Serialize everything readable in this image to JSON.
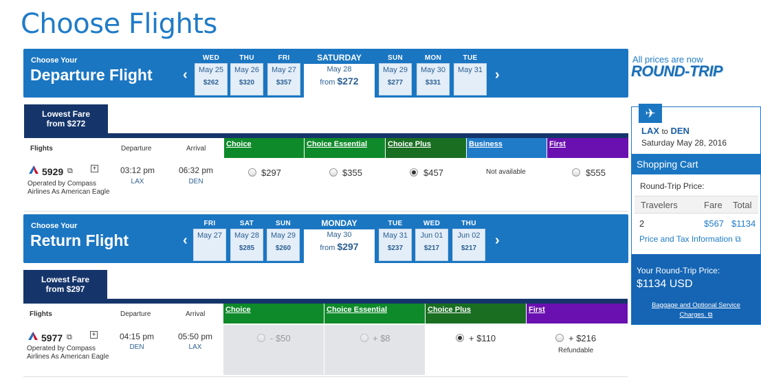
{
  "page_title": "Choose Flights",
  "departure": {
    "choose_your": "Choose Your",
    "flight_type": "Departure Flight",
    "prev_arrow": "‹",
    "next_arrow": "›",
    "days": [
      {
        "dow": "WED",
        "date": "May 25",
        "price": "$262"
      },
      {
        "dow": "THU",
        "date": "May 26",
        "price": "$320"
      },
      {
        "dow": "FRI",
        "date": "May 27",
        "price": "$357"
      },
      {
        "dow": "SUN",
        "date": "May 29",
        "price": "$277"
      },
      {
        "dow": "MON",
        "date": "May 30",
        "price": "$331"
      },
      {
        "dow": "TUE",
        "date": "May 31",
        "price": ""
      }
    ],
    "selected": {
      "dow": "SATURDAY",
      "date": "May 28",
      "from": "from",
      "price": "$272"
    },
    "lowest_fare": {
      "line1": "Lowest Fare",
      "line2": "from $272"
    },
    "headers": {
      "flights": "Flights",
      "departure": "Departure",
      "arrival": "Arrival"
    },
    "cabins": [
      "Choice",
      "Choice Essential",
      "Choice Plus",
      "Business",
      "First"
    ],
    "flight": {
      "number": "5929",
      "operated": "Operated by Compass Airlines As American Eagle",
      "dep_time": "03:12 pm",
      "dep_airport": "LAX",
      "arr_time": "06:32 pm",
      "arr_airport": "DEN",
      "fares": [
        "$297",
        "$355",
        "$457",
        "Not available",
        "$555"
      ],
      "selected_fare": "Choice Plus"
    }
  },
  "return": {
    "choose_your": "Choose Your",
    "flight_type": "Return Flight",
    "prev_arrow": "‹",
    "next_arrow": "›",
    "days": [
      {
        "dow": "FRI",
        "date": "May 27",
        "price": ""
      },
      {
        "dow": "SAT",
        "date": "May 28",
        "price": "$285"
      },
      {
        "dow": "SUN",
        "date": "May 29",
        "price": "$260"
      },
      {
        "dow": "TUE",
        "date": "May 31",
        "price": "$237"
      },
      {
        "dow": "WED",
        "date": "Jun 01",
        "price": "$217"
      },
      {
        "dow": "THU",
        "date": "Jun 02",
        "price": "$217"
      }
    ],
    "selected": {
      "dow": "MONDAY",
      "date": "May 30",
      "from": "from",
      "price": "$297"
    },
    "lowest_fare": {
      "line1": "Lowest Fare",
      "line2": "from $297"
    },
    "headers": {
      "flights": "Flights",
      "departure": "Departure",
      "arrival": "Arrival"
    },
    "cabins": [
      "Choice",
      "Choice Essential",
      "Choice Plus",
      "First"
    ],
    "flight": {
      "number": "5977",
      "operated": "Operated by Compass Airlines As American Eagle",
      "dep_time": "04:15 pm",
      "dep_airport": "DEN",
      "arr_time": "05:50 pm",
      "arr_airport": "LAX",
      "fares": [
        "- $50",
        "+ $8",
        "+ $110",
        "+ $216"
      ],
      "refundable": "Refundable",
      "selected_fare": "Choice Plus"
    }
  },
  "sidebar": {
    "note": "All prices are now",
    "roundtrip": "ROUND-TRIP",
    "origin": "LAX",
    "to": "to",
    "destination": "DEN",
    "date": "Saturday May 28, 2016",
    "cart_title": "Shopping Cart",
    "rt_price_label": "Round-Trip Price:",
    "col_travelers": "Travelers",
    "col_fare": "Fare",
    "col_total": "Total",
    "travelers": "2",
    "fare": "$567",
    "total": "$1134",
    "tax_link": "Price and Tax Information",
    "your_price_label": "Your Round-Trip Price:",
    "your_price": "$1134 USD",
    "baggage_link_1": "Baggage and Optional Service",
    "baggage_link_2": "Charges."
  },
  "colors": {
    "band_blue": "#1b76c2",
    "navy": "#15356a",
    "choice_green": "#0f8a2a",
    "choice_plus_green": "#1a6e22",
    "business_blue": "#1f7bc8",
    "first_purple": "#6a10b0"
  }
}
